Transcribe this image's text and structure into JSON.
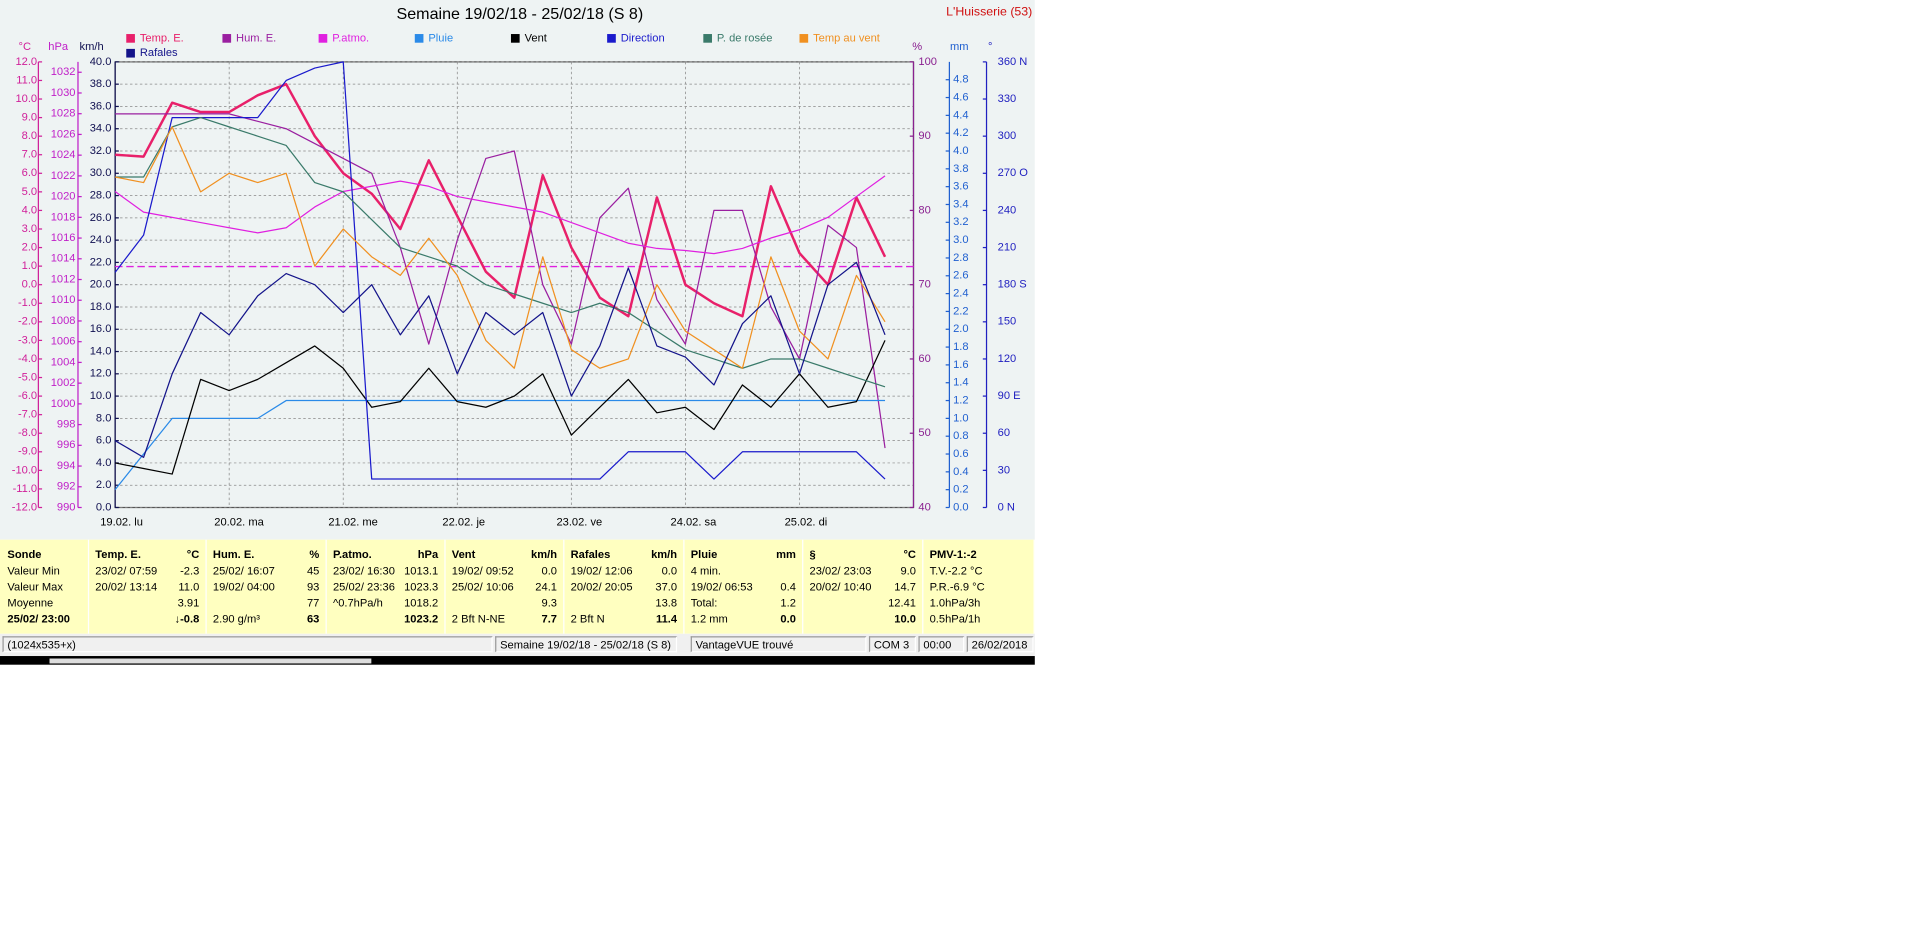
{
  "chart_data": {
    "type": "line",
    "title": "Semaine 19/02/18 - 25/02/18 (S 8)",
    "annotation": "L'Huisserie (53)",
    "categories": [
      "19.02. lu",
      null,
      null,
      null,
      "20.02. ma",
      null,
      null,
      null,
      "21.02. me",
      null,
      null,
      null,
      "22.02. je",
      null,
      null,
      null,
      "23.02. ve",
      null,
      null,
      null,
      "24.02. sa",
      null,
      null,
      null,
      "25.02. di",
      null,
      null,
      null
    ],
    "grid": true,
    "axes": [
      {
        "unit": "°C",
        "color": "#d0209a",
        "ylim": [
          -12,
          12
        ],
        "yticks": [
          {
            "value": -12,
            "label": "-12.0"
          },
          {
            "value": -11,
            "label": "-11.0"
          },
          {
            "value": -10,
            "label": "-10.0"
          },
          {
            "value": -9,
            "label": "-9.0"
          },
          {
            "value": -8,
            "label": "-8.0"
          },
          {
            "value": -7,
            "label": "-7.0"
          },
          {
            "value": -6,
            "label": "-6.0"
          },
          {
            "value": -5,
            "label": "-5.0"
          },
          {
            "value": -4,
            "label": "-4.0"
          },
          {
            "value": -3,
            "label": "-3.0"
          },
          {
            "value": -2,
            "label": "-2.0"
          },
          {
            "value": -1,
            "label": "-1.0"
          },
          {
            "value": 0,
            "label": "0.0"
          },
          {
            "value": 1,
            "label": "1.0"
          },
          {
            "value": 2,
            "label": "2.0"
          },
          {
            "value": 3,
            "label": "3.0"
          },
          {
            "value": 4,
            "label": "4.0"
          },
          {
            "value": 5,
            "label": "5.0"
          },
          {
            "value": 6,
            "label": "6.0"
          },
          {
            "value": 7,
            "label": "7.0"
          },
          {
            "value": 8,
            "label": "8.0"
          },
          {
            "value": 9,
            "label": "9.0"
          },
          {
            "value": 10,
            "label": "10.0"
          },
          {
            "value": 11,
            "label": "11.0"
          },
          {
            "value": 12,
            "label": "12.0"
          }
        ]
      },
      {
        "unit": "hPa",
        "color": "#c020c8",
        "ylim": [
          990,
          1033
        ],
        "yticks": [
          990,
          992,
          994,
          996,
          998,
          1000,
          1002,
          1004,
          1006,
          1008,
          1010,
          1012,
          1014,
          1016,
          1018,
          1020,
          1022,
          1024,
          1026,
          1028,
          1030,
          1032
        ]
      },
      {
        "unit": "km/h",
        "color": "#101050",
        "grid": true,
        "ylim": [
          0,
          40
        ],
        "yticks": [
          {
            "value": 0,
            "label": "0.0"
          },
          {
            "value": 2,
            "label": "2.0"
          },
          {
            "value": 4,
            "label": "4.0"
          },
          {
            "value": 6,
            "label": "6.0"
          },
          {
            "value": 8,
            "label": "8.0"
          },
          {
            "value": 10,
            "label": "10.0"
          },
          {
            "value": 12,
            "label": "12.0"
          },
          {
            "value": 14,
            "label": "14.0"
          },
          {
            "value": 16,
            "label": "16.0"
          },
          {
            "value": 18,
            "label": "18.0"
          },
          {
            "value": 20,
            "label": "20.0"
          },
          {
            "value": 22,
            "label": "22.0"
          },
          {
            "value": 24,
            "label": "24.0"
          },
          {
            "value": 26,
            "label": "26.0"
          },
          {
            "value": 28,
            "label": "28.0"
          },
          {
            "value": 30,
            "label": "30.0"
          },
          {
            "value": 32,
            "label": "32.0"
          },
          {
            "value": 34,
            "label": "34.0"
          },
          {
            "value": 36,
            "label": "36.0"
          },
          {
            "value": 38,
            "label": "38.0"
          },
          {
            "value": 40,
            "label": "40.0"
          }
        ]
      },
      {
        "unit": "%",
        "color": "#8a2090",
        "ylim": [
          40,
          100
        ],
        "yticks": [
          40,
          50,
          60,
          70,
          80,
          90,
          100
        ]
      },
      {
        "unit": "mm",
        "color": "#2060d0",
        "ylim": [
          0,
          5
        ],
        "yticks": [
          {
            "value": 0,
            "label": "0.0"
          },
          0.2,
          0.4,
          0.6,
          0.8,
          {
            "value": 1,
            "label": "1.0"
          },
          1.2,
          1.4,
          1.6,
          1.8,
          {
            "value": 2,
            "label": "2.0"
          },
          2.2,
          2.4,
          2.6,
          2.8,
          {
            "value": 3,
            "label": "3.0"
          },
          3.2,
          3.4,
          3.6,
          3.8,
          {
            "value": 4,
            "label": "4.0"
          },
          4.2,
          4.4,
          4.6,
          4.8
        ]
      },
      {
        "unit": "°",
        "color": "#2020c0",
        "ylim": [
          0,
          360
        ],
        "yticks": [
          {
            "value": 0,
            "label": "0 N"
          },
          30,
          60,
          {
            "value": 90,
            "label": "90 E"
          },
          120,
          150,
          {
            "value": 180,
            "label": "180 S"
          },
          210,
          240,
          {
            "value": 270,
            "label": "270 O"
          },
          300,
          330,
          {
            "value": 360,
            "label": "360 N"
          }
        ]
      }
    ],
    "reference_line": {
      "unit": "hPa",
      "value": 1013.25,
      "color": "#e020e0"
    },
    "series": [
      {
        "name": "Temp. E.",
        "color": "#e8206a",
        "axis": "°C",
        "values": [
          7.0,
          6.9,
          9.8,
          9.3,
          9.3,
          10.2,
          10.8,
          8.0,
          6.0,
          4.9,
          3.0,
          6.7,
          3.7,
          0.7,
          -0.7,
          5.9,
          2.0,
          -0.7,
          -1.7,
          4.7,
          0.0,
          -1.0,
          -1.7,
          5.3,
          1.7,
          0.0,
          4.7,
          1.5
        ]
      },
      {
        "name": "Hum. E.",
        "color": "#9a1fa0",
        "axis": "%",
        "values": [
          93,
          93,
          93,
          93,
          93,
          92,
          91,
          89,
          87,
          85,
          75,
          62,
          76,
          87,
          88,
          70,
          62,
          79,
          83,
          68,
          62,
          80,
          80,
          67,
          60,
          78,
          75,
          48
        ]
      },
      {
        "name": "P.atmo.",
        "color": "#e020e0",
        "axis": "hPa",
        "values": [
          1020.5,
          1018.5,
          1018.0,
          1017.5,
          1017.0,
          1016.5,
          1017.0,
          1019.0,
          1020.5,
          1021.0,
          1021.5,
          1021.0,
          1020.0,
          1019.5,
          1019.0,
          1018.5,
          1017.5,
          1016.5,
          1015.5,
          1015.0,
          1014.8,
          1014.5,
          1015.0,
          1016.0,
          1016.8,
          1018.0,
          1020.0,
          1022.0
        ]
      },
      {
        "name": "Pluie",
        "color": "#2a8ae8",
        "axis": "mm",
        "values": [
          0.2,
          0.6,
          1.0,
          1.0,
          1.0,
          1.0,
          1.2,
          1.2,
          1.2,
          1.2,
          1.2,
          1.2,
          1.2,
          1.2,
          1.2,
          1.2,
          1.2,
          1.2,
          1.2,
          1.2,
          1.2,
          1.2,
          1.2,
          1.2,
          1.2,
          1.2,
          1.2,
          1.2
        ]
      },
      {
        "name": "Vent",
        "color": "#000000",
        "axis": "km/h",
        "values": [
          4.0,
          3.5,
          3.0,
          11.5,
          10.5,
          11.5,
          13.0,
          14.5,
          12.5,
          9.0,
          9.5,
          12.5,
          9.5,
          9.0,
          10.0,
          12.0,
          6.5,
          9.0,
          11.5,
          8.5,
          9.0,
          7.0,
          11.0,
          9.0,
          12.0,
          9.0,
          9.5,
          15.0
        ]
      },
      {
        "name": "Direction",
        "color": "#1a1acc",
        "axis": "°",
        "values": [
          190,
          220,
          315,
          315,
          315,
          315,
          345,
          355,
          360,
          23,
          23,
          23,
          23,
          23,
          23,
          23,
          23,
          23,
          45,
          45,
          45,
          23,
          45,
          45,
          45,
          45,
          45,
          23
        ]
      },
      {
        "name": "P. de rosée",
        "color": "#3a7a6a",
        "axis": "°C",
        "values": [
          5.8,
          5.8,
          8.5,
          9.0,
          8.5,
          8.0,
          7.5,
          5.5,
          5.0,
          3.5,
          2.0,
          1.5,
          1.0,
          0.0,
          -0.5,
          -1.0,
          -1.5,
          -1.0,
          -1.5,
          -2.5,
          -3.5,
          -4.0,
          -4.5,
          -4.0,
          -4.0,
          -4.5,
          -5.0,
          -5.5
        ]
      },
      {
        "name": "Temp au vent",
        "color": "#f09020",
        "axis": "°C",
        "values": [
          5.8,
          5.5,
          8.5,
          5.0,
          6.0,
          5.5,
          6.0,
          1.0,
          3.0,
          1.5,
          0.5,
          2.5,
          0.5,
          -3.0,
          -4.5,
          1.5,
          -3.5,
          -4.5,
          -4.0,
          0.0,
          -2.5,
          -3.5,
          -4.5,
          1.5,
          -2.5,
          -4.0,
          0.5,
          -2.0
        ]
      },
      {
        "name": "Rafales",
        "color": "#14148a",
        "axis": "km/h",
        "values": [
          6.0,
          4.5,
          12.0,
          17.5,
          15.5,
          19.0,
          21.0,
          20.0,
          17.5,
          20.0,
          15.5,
          19.0,
          12.0,
          17.5,
          15.5,
          17.5,
          10.0,
          14.5,
          21.5,
          14.5,
          13.5,
          11.0,
          16.5,
          19.0,
          12.0,
          20.0,
          22.0,
          15.5
        ]
      }
    ]
  },
  "table": {
    "row_labels": [
      "Sonde",
      "Valeur Min",
      "Valeur Max",
      "Moyenne",
      "25/02/ 23:00"
    ],
    "columns": [
      {
        "name": "Temp. E.",
        "unit": "°C",
        "rows": [
          {
            "left": "23/02/ 07:59",
            "right": "-2.3"
          },
          {
            "left": "20/02/ 13:14",
            "right": "11.0"
          },
          {
            "right": "3.91"
          },
          {
            "right": "↓-0.8"
          }
        ]
      },
      {
        "name": "Hum. E.",
        "unit": "%",
        "rows": [
          {
            "left": "25/02/ 16:07",
            "right": "45"
          },
          {
            "left": "19/02/ 04:00",
            "right": "93"
          },
          {
            "right": "77"
          },
          {
            "left": "2.90 g/m³",
            "right": "63"
          }
        ]
      },
      {
        "name": "P.atmo.",
        "unit": "hPa",
        "rows": [
          {
            "left": "23/02/ 16:30",
            "right": "1013.1"
          },
          {
            "left": "25/02/ 23:36",
            "right": "1023.3"
          },
          {
            "left": "^0.7hPa/h",
            "right": "1018.2"
          },
          {
            "right": "1023.2"
          }
        ]
      },
      {
        "name": "Vent",
        "unit": "km/h",
        "rows": [
          {
            "left": "19/02/ 09:52",
            "right": "0.0"
          },
          {
            "left": "25/02/ 10:06",
            "right": "24.1"
          },
          {
            "right": "9.3"
          },
          {
            "left": "2 Bft N-NE",
            "right": "7.7"
          }
        ]
      },
      {
        "name": "Rafales",
        "unit": "km/h",
        "rows": [
          {
            "left": "19/02/ 12:06",
            "right": "0.0"
          },
          {
            "left": "20/02/ 20:05",
            "right": "37.0"
          },
          {
            "right": "13.8"
          },
          {
            "left": "2 Bft N",
            "right": "11.4"
          }
        ]
      },
      {
        "name": "Pluie",
        "unit": "mm",
        "rows": [
          {
            "left": "4 min."
          },
          {
            "left": "19/02/ 06:53",
            "right": "0.4"
          },
          {
            "left": "Total:",
            "right": "1.2"
          },
          {
            "left": "1.2 mm",
            "right": "0.0"
          }
        ]
      },
      {
        "name": "§",
        "unit": "°C",
        "rows": [
          {
            "left": "23/02/ 23:03",
            "right": "9.0"
          },
          {
            "left": "20/02/ 10:40",
            "right": "14.7"
          },
          {
            "right": "12.41"
          },
          {
            "right": "10.0"
          }
        ]
      },
      {
        "name": "PMV-1:-2",
        "rows": [
          {
            "left": "T.V.-2.2 °C"
          },
          {
            "left": "P.R.-6.9 °C"
          },
          {
            "left": "1.0hPa/3h"
          },
          {
            "left": "0.5hPa/1h"
          }
        ]
      }
    ]
  },
  "status_bar": {
    "items": [
      "(1024x535+x)",
      "Semaine 19/02/18 - 25/02/18 (S 8)",
      "VantageVUE trouvé",
      "COM 3",
      "00:00",
      "26/02/2018"
    ]
  }
}
